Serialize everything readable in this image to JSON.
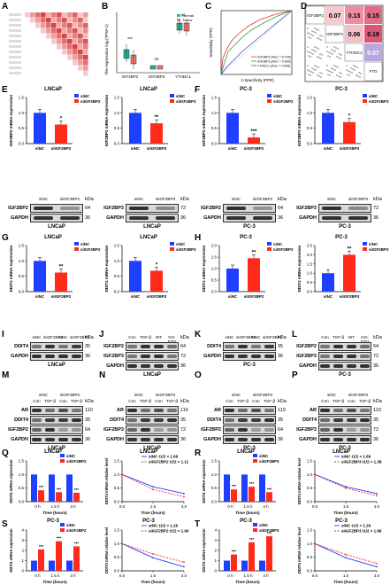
{
  "panels": {
    "A": {
      "label": "A"
    },
    "B": {
      "label": "B",
      "legend": [
        "Normal",
        "Tumor"
      ],
      "categories": [
        "IGF2BP2",
        "IGF2BP3",
        "YTHDC1"
      ],
      "ylabel": "The expression log₂(TPM+1)",
      "sig": [
        "***",
        "ns",
        "ns"
      ]
    },
    "C": {
      "label": "C",
      "xlabel": "1-Specificity (FPR)",
      "ylabel": "Sensitivity (TPR)",
      "legend": [
        "IGF2BP2 (AUC = 0.705)",
        "IGF2BP3 (AUC = 0.696)",
        "YTHDC1 (AUC = 0.548)"
      ]
    },
    "D": {
      "label": "D",
      "diag": [
        "IGF2BP2",
        "IGF2BP3",
        "YTHDC1",
        "FTO"
      ],
      "values": [
        "0.07",
        "0.13",
        "0.15",
        "0.06",
        "0.19",
        "0.07"
      ]
    },
    "E": {
      "label": "E"
    },
    "F": {
      "label": "F"
    },
    "G": {
      "label": "G"
    },
    "H": {
      "label": "H"
    },
    "I": {
      "label": "I"
    },
    "J": {
      "label": "J"
    },
    "K": {
      "label": "K"
    },
    "L": {
      "label": "L"
    },
    "M": {
      "label": "M"
    },
    "N": {
      "label": "N"
    },
    "O": {
      "label": "O"
    },
    "P": {
      "label": "P"
    },
    "Q": {
      "label": "Q"
    },
    "R": {
      "label": "R"
    },
    "S": {
      "label": "S"
    },
    "T": {
      "label": "T"
    }
  },
  "cells": {
    "LNCaP": "LNCaP",
    "PC3": "PC-3",
    "siNC": "siNC",
    "siIGF2BP2": "siIGF2BP2",
    "siIGF2BP3": "siIGF2BP3",
    "kDa": "kDa",
    "Con": "Con",
    "TGF": "TGF-β",
    "WT": "WT",
    "KOFTO": "KO-FTO",
    "IGF2BP2": "IGF2BP2",
    "IGF2BP3": "IGF2BP3",
    "GAPDH": "GAPDH",
    "DDIT4": "DDIT4",
    "AR": "AR"
  },
  "axes": {
    "igf2bp2_mrna": "IGF2BP2 mRNA expression",
    "igf2bp3_mrna": "IGF2BP3 mRNA expression",
    "ddit4_mrna": "DDIT4 mRNA expression",
    "ddit4_relative": "DDIT4 mRNA relative level",
    "time": "Time (hours)",
    "ticks_0_1_5_3": [
      "0 h",
      "1.5 h",
      "3 h"
    ]
  },
  "chart_data": [
    {
      "id": "E1",
      "type": "bar",
      "categories": [
        "siNC",
        "siIGF2BP2"
      ],
      "values": [
        1.0,
        0.62
      ],
      "ylim": [
        0,
        1.5
      ],
      "sig": "*",
      "colors": [
        "#1f3fff",
        "#ff2a1a"
      ]
    },
    {
      "id": "E2",
      "type": "bar",
      "categories": [
        "siNC",
        "siIGF2BP3"
      ],
      "values": [
        1.0,
        0.66
      ],
      "ylim": [
        0,
        1.5
      ],
      "sig": "**",
      "colors": [
        "#1f3fff",
        "#ff2a1a"
      ]
    },
    {
      "id": "F1",
      "type": "bar",
      "categories": [
        "siNC",
        "siIGF2BP2"
      ],
      "values": [
        1.0,
        0.2
      ],
      "ylim": [
        0,
        1.5
      ],
      "sig": "***",
      "colors": [
        "#1f3fff",
        "#ff2a1a"
      ]
    },
    {
      "id": "F2",
      "type": "bar",
      "categories": [
        "siNC",
        "siIGF2BP3"
      ],
      "values": [
        1.0,
        0.7
      ],
      "ylim": [
        0,
        1.5
      ],
      "sig": "*",
      "colors": [
        "#1f3fff",
        "#ff2a1a"
      ]
    },
    {
      "id": "G1",
      "type": "bar",
      "categories": [
        "siNC",
        "siIGF2BP2"
      ],
      "values": [
        1.0,
        0.62
      ],
      "ylim": [
        0,
        1.5
      ],
      "sig": "**",
      "colors": [
        "#1f3fff",
        "#ff2a1a"
      ]
    },
    {
      "id": "G2",
      "type": "bar",
      "categories": [
        "siNC",
        "siIGF2BP3"
      ],
      "values": [
        1.0,
        0.68
      ],
      "ylim": [
        0,
        1.5
      ],
      "sig": "*",
      "colors": [
        "#1f3fff",
        "#ff2a1a"
      ]
    },
    {
      "id": "H1",
      "type": "bar",
      "categories": [
        "siNC",
        "siIGF2BP2"
      ],
      "values": [
        1.0,
        1.45
      ],
      "ylim": [
        0,
        2.0
      ],
      "sig": "**",
      "colors": [
        "#1f3fff",
        "#ff2a1a"
      ]
    },
    {
      "id": "H2",
      "type": "bar",
      "categories": [
        "siNC",
        "siIGF2BP3"
      ],
      "values": [
        1.0,
        2.0
      ],
      "ylim": [
        0,
        2.5
      ],
      "sig": "**",
      "colors": [
        "#1f3fff",
        "#ff2a1a"
      ]
    },
    {
      "id": "Q1",
      "type": "bar",
      "categories": [
        "0 h",
        "1.5 h",
        "3 h"
      ],
      "series": [
        {
          "name": "siNC",
          "values": [
            1.0,
            1.0,
            1.0
          ]
        },
        {
          "name": "siIGF2BP2",
          "values": [
            0.42,
            0.35,
            0.33
          ]
        }
      ],
      "ylim": [
        0,
        1.5
      ]
    },
    {
      "id": "Q2",
      "type": "line",
      "x": [
        0,
        1.5,
        3.0
      ],
      "series": [
        {
          "name": "siNC t1/2 = 1.69",
          "values": [
            1.0,
            0.55,
            0.3
          ]
        },
        {
          "name": "siIGF2BP2 t1/2 = 1.11",
          "values": [
            1.0,
            0.45,
            0.18
          ]
        }
      ],
      "ylim": [
        0,
        1.5
      ]
    },
    {
      "id": "R1",
      "type": "bar",
      "categories": [
        "0 h",
        "1.5 h",
        "3 h"
      ],
      "series": [
        {
          "name": "siNC",
          "values": [
            1.0,
            1.0,
            1.0
          ]
        },
        {
          "name": "siIGF2BP3",
          "values": [
            0.45,
            0.55,
            0.35
          ]
        }
      ],
      "ylim": [
        0,
        1.5
      ]
    },
    {
      "id": "R2",
      "type": "line",
      "x": [
        0,
        1.5,
        3.0
      ],
      "series": [
        {
          "name": "siNC t1/2 = 1.69",
          "values": [
            1.0,
            0.55,
            0.3
          ]
        },
        {
          "name": "siIGF2BP3 t1/2 = 1.38",
          "values": [
            1.0,
            0.5,
            0.22
          ]
        }
      ],
      "ylim": [
        0,
        1.5
      ]
    },
    {
      "id": "S1",
      "type": "bar",
      "categories": [
        "0 h",
        "1.5 h",
        "3 h"
      ],
      "series": [
        {
          "name": "siNC",
          "values": [
            1.0,
            1.0,
            1.0
          ]
        },
        {
          "name": "siIGF2BP2",
          "values": [
            2.1,
            2.9,
            2.4
          ]
        }
      ],
      "ylim": [
        0,
        4
      ]
    },
    {
      "id": "S2",
      "type": "line",
      "x": [
        0,
        1.5,
        3.0
      ],
      "series": [
        {
          "name": "siNC t1/2 = 1.26",
          "values": [
            1.0,
            0.48,
            0.15
          ]
        },
        {
          "name": "siIGF2BP2 t1/2 = 1.90",
          "values": [
            1.0,
            0.62,
            0.32
          ]
        }
      ],
      "ylim": [
        0,
        1.5
      ]
    },
    {
      "id": "T1",
      "type": "bar",
      "categories": [
        "0 h",
        "1.5 h",
        "3 h"
      ],
      "series": [
        {
          "name": "siNC",
          "values": [
            1.0,
            1.0,
            1.0
          ]
        },
        {
          "name": "siIGF2BP3",
          "values": [
            1.6,
            2.8,
            3.4
          ]
        }
      ],
      "ylim": [
        0,
        4
      ]
    },
    {
      "id": "T2",
      "type": "line",
      "x": [
        0,
        1.5,
        3.0
      ],
      "series": [
        {
          "name": "siNC t1/2 = 1.26",
          "values": [
            1.0,
            0.48,
            0.15
          ]
        },
        {
          "name": "siIGF2BP3 t1/2 = 1.68",
          "values": [
            1.0,
            0.6,
            0.27
          ]
        }
      ],
      "ylim": [
        0,
        1.5
      ]
    }
  ]
}
